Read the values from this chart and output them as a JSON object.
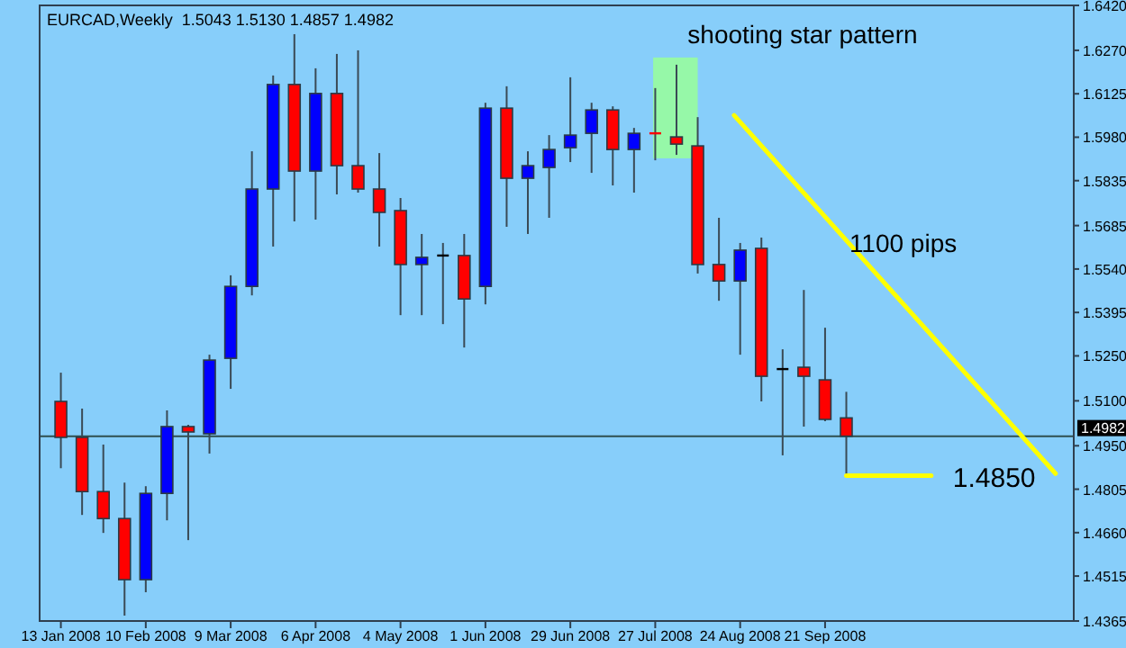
{
  "chart_data": {
    "type": "candlestick",
    "title": "EURCAD,Weekly  1.5043 1.5130 1.4857 1.4982",
    "x": [
      "2008-01-13",
      "2008-01-20",
      "2008-01-27",
      "2008-02-03",
      "2008-02-10",
      "2008-02-17",
      "2008-02-24",
      "2008-03-02",
      "2008-03-09",
      "2008-03-16",
      "2008-03-23",
      "2008-03-30",
      "2008-04-06",
      "2008-04-13",
      "2008-04-20",
      "2008-04-27",
      "2008-05-04",
      "2008-05-11",
      "2008-05-18",
      "2008-05-25",
      "2008-06-01",
      "2008-06-08",
      "2008-06-15",
      "2008-06-22",
      "2008-06-29",
      "2008-07-06",
      "2008-07-13",
      "2008-07-20",
      "2008-07-27",
      "2008-08-03",
      "2008-08-10",
      "2008-08-17",
      "2008-08-24",
      "2008-08-31",
      "2008-09-07",
      "2008-09-14",
      "2008-09-21",
      "2008-09-28"
    ],
    "ohlc": [
      [
        1.5098,
        1.5194,
        1.4875,
        1.4978
      ],
      [
        1.4978,
        1.5074,
        1.4719,
        1.4797
      ],
      [
        1.4797,
        1.4954,
        1.4659,
        1.4707
      ],
      [
        1.4707,
        1.4827,
        1.4383,
        1.4503
      ],
      [
        1.4503,
        1.4815,
        1.4461,
        1.4791
      ],
      [
        1.4791,
        1.5068,
        1.4701,
        1.5014
      ],
      [
        1.5014,
        1.502,
        1.4635,
        1.4996
      ],
      [
        1.499,
        1.5254,
        1.4924,
        1.5236
      ],
      [
        1.5242,
        1.5519,
        1.514,
        1.5482
      ],
      [
        1.5482,
        1.5933,
        1.5452,
        1.5807
      ],
      [
        1.5807,
        1.6186,
        1.5615,
        1.6156
      ],
      [
        1.6156,
        1.6324,
        1.5699,
        1.5867
      ],
      [
        1.5867,
        1.621,
        1.5705,
        1.6126
      ],
      [
        1.6126,
        1.6258,
        1.5789,
        1.5885
      ],
      [
        1.5885,
        1.627,
        1.5795,
        1.5807
      ],
      [
        1.5807,
        1.5927,
        1.5615,
        1.5729
      ],
      [
        1.5735,
        1.5777,
        1.5386,
        1.5555
      ],
      [
        1.5555,
        1.5657,
        1.5386,
        1.5579
      ],
      [
        1.5585,
        1.5627,
        1.5356,
        1.5585
      ],
      [
        1.5585,
        1.5657,
        1.5278,
        1.544
      ],
      [
        1.5482,
        1.6095,
        1.5422,
        1.6077
      ],
      [
        1.6077,
        1.615,
        1.5681,
        1.5843
      ],
      [
        1.5843,
        1.5933,
        1.5657,
        1.5885
      ],
      [
        1.5879,
        1.5987,
        1.5711,
        1.5939
      ],
      [
        1.5945,
        1.618,
        1.5897,
        1.5987
      ],
      [
        1.5993,
        1.6095,
        1.5861,
        1.6071
      ],
      [
        1.6071,
        1.6083,
        1.5819,
        1.5939
      ],
      [
        1.5939,
        1.6011,
        1.5795,
        1.5993
      ],
      [
        1.5993,
        1.6144,
        1.5903,
        1.5984
      ],
      [
        1.5981,
        1.6222,
        1.5921,
        1.5957
      ],
      [
        1.5951,
        1.6047,
        1.5525,
        1.5555
      ],
      [
        1.5555,
        1.5711,
        1.5434,
        1.55
      ],
      [
        1.55,
        1.5627,
        1.5254,
        1.5603
      ],
      [
        1.5609,
        1.5645,
        1.5098,
        1.5182
      ],
      [
        1.5206,
        1.5272,
        1.4918,
        1.5206
      ],
      [
        1.5212,
        1.547,
        1.5014,
        1.5182
      ],
      [
        1.517,
        1.5344,
        1.5032,
        1.5038
      ],
      [
        1.5043,
        1.513,
        1.4857,
        1.4982
      ]
    ],
    "colors": [
      "#ff0000",
      "#ff0000",
      "#ff0000",
      "#ff0000",
      "#0000ff",
      "#0000ff",
      "#ff0000",
      "#0000ff",
      "#0000ff",
      "#0000ff",
      "#0000ff",
      "#ff0000",
      "#0000ff",
      "#ff0000",
      "#ff0000",
      "#ff0000",
      "#ff0000",
      "#0000ff",
      "#000000",
      "#ff0000",
      "#0000ff",
      "#ff0000",
      "#0000ff",
      "#0000ff",
      "#0000ff",
      "#0000ff",
      "#ff0000",
      "#0000ff",
      "#ff0000",
      "#ff0000",
      "#ff0000",
      "#ff0000",
      "#0000ff",
      "#ff0000",
      "#000000",
      "#ff0000",
      "#ff0000",
      "#ff0000"
    ],
    "series": [
      {
        "type": "line",
        "color": "#ffff00",
        "x": [
          "2008-08-22",
          "2008-12-06"
        ],
        "values": [
          1.6053,
          1.4857
        ]
      },
      {
        "type": "line",
        "color": "#ffff00",
        "x": [
          "2008-09-28",
          "2008-10-26"
        ],
        "values": [
          1.485,
          1.485
        ]
      }
    ],
    "ref_lines": [
      {
        "axis": "y",
        "value": 1.4982,
        "label": "1.4982",
        "color": "#2f4f4f"
      }
    ],
    "annotations": [
      {
        "text": "shooting star pattern",
        "x": "2008-08-03",
        "y": 1.6222
      },
      "1100 pips",
      {
        "text": "1.4850",
        "x": "2008-10-26",
        "y": 1.485
      }
    ],
    "xlim": [
      "2008-01-06",
      "2008-12-12"
    ],
    "xticks": [
      {
        "value": "2008-01-13",
        "label": "13 Jan 2008"
      },
      {
        "value": "2008-02-10",
        "label": "10 Feb 2008"
      },
      {
        "value": "2008-03-09",
        "label": "9 Mar 2008"
      },
      {
        "value": "2008-04-06",
        "label": "6 Apr 2008"
      },
      {
        "value": "2008-05-04",
        "label": "4 May 2008"
      },
      {
        "value": "2008-06-01",
        "label": "1 Jun 2008"
      },
      {
        "value": "2008-06-29",
        "label": "29 Jun 2008"
      },
      {
        "value": "2008-07-27",
        "label": "27 Jul 2008"
      },
      {
        "value": "2008-08-24",
        "label": "24 Aug 2008"
      },
      {
        "value": "2008-09-21",
        "label": "21 Sep 2008"
      }
    ],
    "ylim": [
      1.4365,
      1.642
    ],
    "yticks": [
      {
        "value": 1.642,
        "label": "1.6420"
      },
      {
        "value": 1.627,
        "label": "1.6270"
      },
      {
        "value": 1.6125,
        "label": "1.6125"
      },
      {
        "value": 1.598,
        "label": "1.5980"
      },
      {
        "value": 1.5835,
        "label": "1.5835"
      },
      {
        "value": 1.5685,
        "label": "1.5685"
      },
      {
        "value": 1.554,
        "label": "1.5540"
      },
      {
        "value": 1.5395,
        "label": "1.5395"
      },
      {
        "value": 1.525,
        "label": "1.5250"
      },
      {
        "value": 1.51,
        "label": "1.5100"
      },
      {
        "value": 1.495,
        "label": "1.4950"
      },
      {
        "value": 1.4805,
        "label": "1.4805"
      },
      {
        "value": 1.466,
        "label": "1.4660"
      },
      {
        "value": 1.4515,
        "label": "1.4515"
      },
      {
        "value": 1.4365,
        "label": "1.4365"
      }
    ],
    "grid": false
  }
}
